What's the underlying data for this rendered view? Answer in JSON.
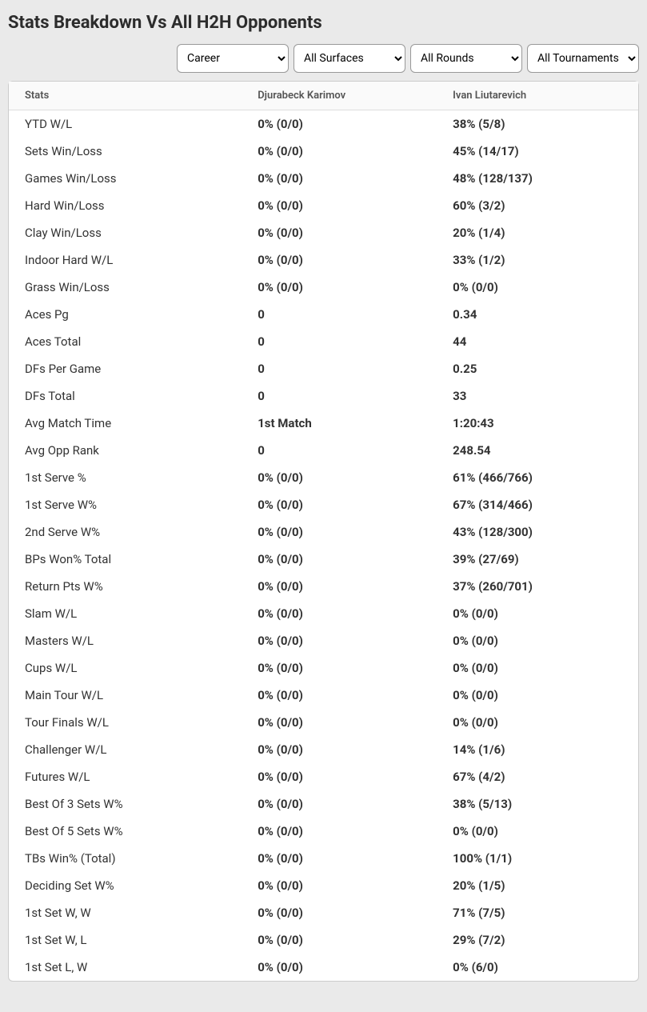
{
  "title": "Stats Breakdown Vs All H2H Opponents",
  "filters": {
    "career": "Career",
    "surfaces": "All Surfaces",
    "rounds": "All Rounds",
    "tournaments": "All Tournaments"
  },
  "table": {
    "headers": {
      "stats": "Stats",
      "player1": "Djurabeck Karimov",
      "player2": "Ivan Liutarevich"
    },
    "rows": [
      {
        "stat": "YTD W/L",
        "p1": "0% (0/0)",
        "p2": "38% (5/8)"
      },
      {
        "stat": "Sets Win/Loss",
        "p1": "0% (0/0)",
        "p2": "45% (14/17)"
      },
      {
        "stat": "Games Win/Loss",
        "p1": "0% (0/0)",
        "p2": "48% (128/137)"
      },
      {
        "stat": "Hard Win/Loss",
        "p1": "0% (0/0)",
        "p2": "60% (3/2)"
      },
      {
        "stat": "Clay Win/Loss",
        "p1": "0% (0/0)",
        "p2": "20% (1/4)"
      },
      {
        "stat": "Indoor Hard W/L",
        "p1": "0% (0/0)",
        "p2": "33% (1/2)"
      },
      {
        "stat": "Grass Win/Loss",
        "p1": "0% (0/0)",
        "p2": "0% (0/0)"
      },
      {
        "stat": "Aces Pg",
        "p1": "0",
        "p2": "0.34"
      },
      {
        "stat": "Aces Total",
        "p1": "0",
        "p2": "44"
      },
      {
        "stat": "DFs Per Game",
        "p1": "0",
        "p2": "0.25"
      },
      {
        "stat": "DFs Total",
        "p1": "0",
        "p2": "33"
      },
      {
        "stat": "Avg Match Time",
        "p1": "1st Match",
        "p2": "1:20:43"
      },
      {
        "stat": "Avg Opp Rank",
        "p1": "0",
        "p2": "248.54"
      },
      {
        "stat": "1st Serve %",
        "p1": "0% (0/0)",
        "p2": "61% (466/766)"
      },
      {
        "stat": "1st Serve W%",
        "p1": "0% (0/0)",
        "p2": "67% (314/466)"
      },
      {
        "stat": "2nd Serve W%",
        "p1": "0% (0/0)",
        "p2": "43% (128/300)"
      },
      {
        "stat": "BPs Won% Total",
        "p1": "0% (0/0)",
        "p2": "39% (27/69)"
      },
      {
        "stat": "Return Pts W%",
        "p1": "0% (0/0)",
        "p2": "37% (260/701)"
      },
      {
        "stat": "Slam W/L",
        "p1": "0% (0/0)",
        "p2": "0% (0/0)"
      },
      {
        "stat": "Masters W/L",
        "p1": "0% (0/0)",
        "p2": "0% (0/0)"
      },
      {
        "stat": "Cups W/L",
        "p1": "0% (0/0)",
        "p2": "0% (0/0)"
      },
      {
        "stat": "Main Tour W/L",
        "p1": "0% (0/0)",
        "p2": "0% (0/0)"
      },
      {
        "stat": "Tour Finals W/L",
        "p1": "0% (0/0)",
        "p2": "0% (0/0)"
      },
      {
        "stat": "Challenger W/L",
        "p1": "0% (0/0)",
        "p2": "14% (1/6)"
      },
      {
        "stat": "Futures W/L",
        "p1": "0% (0/0)",
        "p2": "67% (4/2)"
      },
      {
        "stat": "Best Of 3 Sets W%",
        "p1": "0% (0/0)",
        "p2": "38% (5/13)"
      },
      {
        "stat": "Best Of 5 Sets W%",
        "p1": "0% (0/0)",
        "p2": "0% (0/0)"
      },
      {
        "stat": "TBs Win% (Total)",
        "p1": "0% (0/0)",
        "p2": "100% (1/1)"
      },
      {
        "stat": "Deciding Set W%",
        "p1": "0% (0/0)",
        "p2": "20% (1/5)"
      },
      {
        "stat": "1st Set W, W",
        "p1": "0% (0/0)",
        "p2": "71% (7/5)"
      },
      {
        "stat": "1st Set W, L",
        "p1": "0% (0/0)",
        "p2": "29% (7/2)"
      },
      {
        "stat": "1st Set L, W",
        "p1": "0% (0/0)",
        "p2": "0% (6/0)"
      }
    ]
  }
}
